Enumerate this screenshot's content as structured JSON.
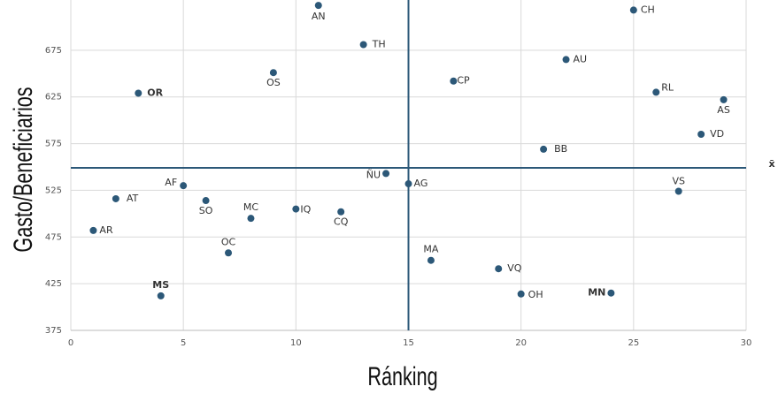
{
  "chart_data": {
    "type": "scatter",
    "x_label": "Ránking",
    "y_label": "Gasto/Beneficiarios",
    "labels": [
      "AN",
      "CH",
      "TH",
      "AU",
      "OS",
      "CP",
      "OR",
      "RL",
      "AS",
      "VD",
      "BB",
      "ÑU",
      "AF",
      "AG",
      "VS",
      "AT",
      "SO",
      "IQ",
      "MC",
      "CQ",
      "AR",
      "OC",
      "MA",
      "VQ",
      "OH",
      "MN",
      "MS"
    ],
    "x": [
      11,
      25,
      13,
      22,
      9,
      17,
      3,
      26,
      29,
      28,
      21,
      14,
      5,
      15,
      27,
      2,
      6,
      10,
      8,
      12,
      1,
      7,
      16,
      19,
      20,
      24,
      4
    ],
    "y": [
      723,
      718,
      681,
      665,
      651,
      642,
      629,
      630,
      622,
      585,
      569,
      543,
      530,
      532,
      524,
      516,
      514,
      505,
      495,
      502,
      482,
      458,
      450,
      441,
      414,
      415,
      412
    ],
    "color": "#2c5878",
    "highlighted": [
      "OR",
      "MN",
      "MS"
    ],
    "highlight_color": "#b0281f",
    "mean_x": 15,
    "mean_y": 549,
    "mean_label": "x̄",
    "mean_color": "#2c5878",
    "xlim": [
      0,
      30
    ],
    "xticks": [
      0,
      5,
      10,
      15,
      20,
      25,
      30
    ],
    "ylim": [
      375,
      725
    ],
    "yticks": [
      375,
      425,
      475,
      525,
      575,
      625,
      675
    ],
    "grid": true
  }
}
